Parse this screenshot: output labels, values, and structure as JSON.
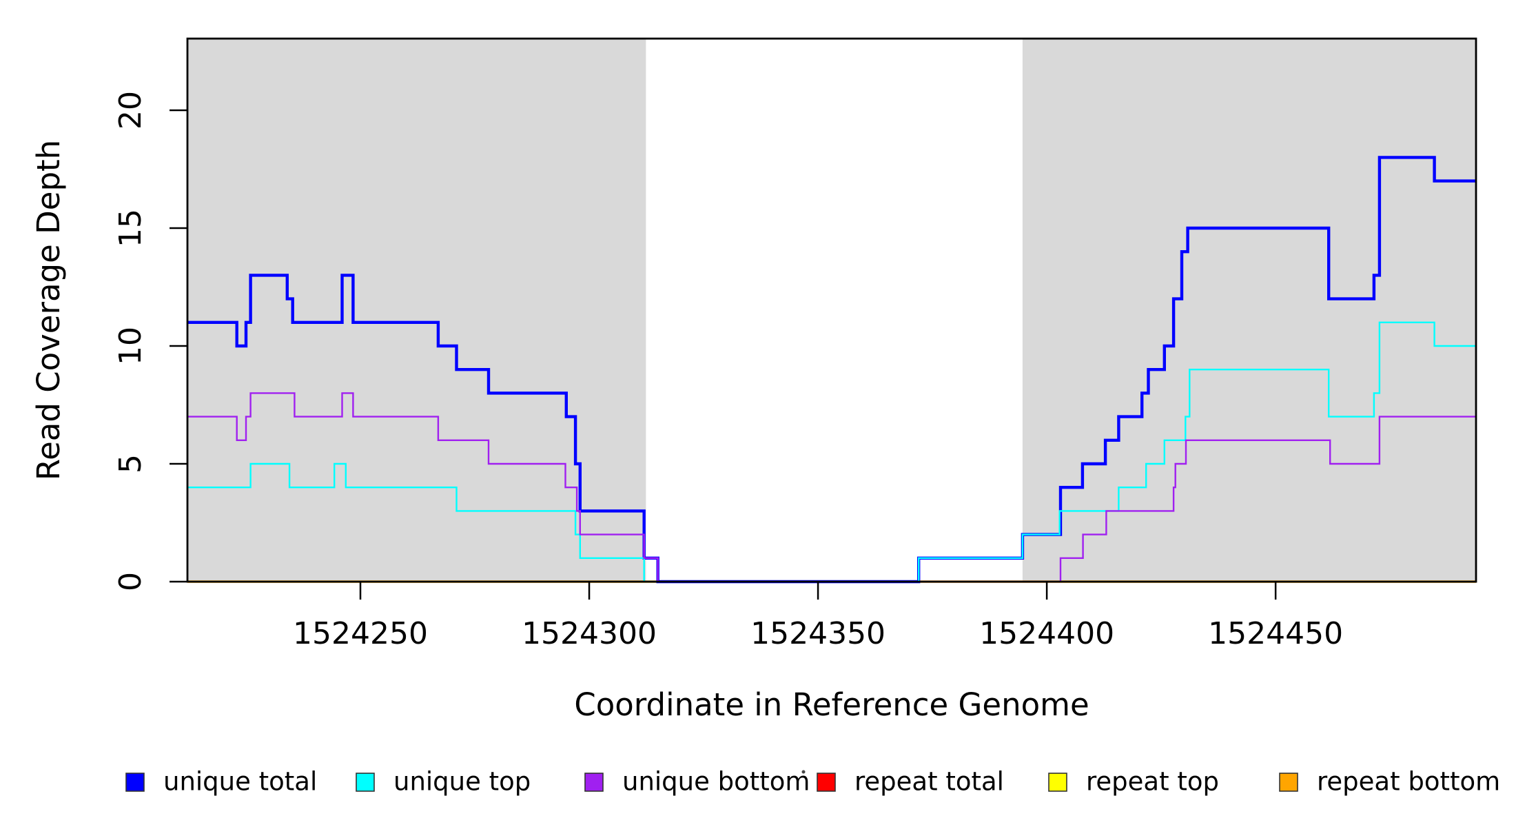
{
  "chart_data": {
    "type": "line",
    "subtype": "step-coverage-plot",
    "title": "",
    "xlabel": "Coordinate in Reference Genome",
    "ylabel": "Read Coverage Depth",
    "xlim": [
      1524212.2,
      1524493.8
    ],
    "ylim": [
      0,
      23.04
    ],
    "grid": false,
    "background_color": "#FFFFFF",
    "box_color": "#000000",
    "shaded_region_color": "#D9D9D9",
    "shaded_regions": [
      [
        1524212.2,
        1524312.4
      ],
      [
        1524394.7,
        1524493.8
      ]
    ],
    "x_ticks": [
      {
        "value": 1524250,
        "label": "1524250"
      },
      {
        "value": 1524300,
        "label": "1524300"
      },
      {
        "value": 1524350,
        "label": "1524350"
      },
      {
        "value": 1524400,
        "label": "1524400"
      },
      {
        "value": 1524450,
        "label": "1524450"
      }
    ],
    "y_ticks": [
      {
        "value": 0,
        "label": "0"
      },
      {
        "value": 5,
        "label": "5"
      },
      {
        "value": 10,
        "label": "10"
      },
      {
        "value": 15,
        "label": "15"
      },
      {
        "value": 20,
        "label": "20"
      }
    ],
    "series": [
      {
        "name": "unique total",
        "color": "#0000FF",
        "line_width": 4.4,
        "start_value": 11,
        "steps": [
          [
            1524223,
            10
          ],
          [
            1524225,
            11
          ],
          [
            1524226,
            13
          ],
          [
            1524234,
            12
          ],
          [
            1524235.2,
            11
          ],
          [
            1524246,
            13
          ],
          [
            1524248.4,
            11
          ],
          [
            1524267,
            10
          ],
          [
            1524271,
            9
          ],
          [
            1524278,
            8
          ],
          [
            1524295,
            7
          ],
          [
            1524297,
            5
          ],
          [
            1524298,
            3
          ],
          [
            1524312,
            1
          ],
          [
            1524315,
            0
          ],
          [
            1524372,
            1
          ],
          [
            1524394.7,
            2
          ],
          [
            1524403,
            4
          ],
          [
            1524407.8,
            5
          ],
          [
            1524412.8,
            6
          ],
          [
            1524415.7,
            7
          ],
          [
            1524420.8,
            8
          ],
          [
            1524422.2,
            9
          ],
          [
            1524425.7,
            10
          ],
          [
            1524427.7,
            12
          ],
          [
            1524429.5,
            14
          ],
          [
            1524430.8,
            15
          ],
          [
            1524461.6,
            12
          ],
          [
            1524471.5,
            13
          ],
          [
            1524472.7,
            18
          ],
          [
            1524484.7,
            17
          ]
        ]
      },
      {
        "name": "unique top",
        "color": "#00FFFF",
        "line_width": 2.4,
        "start_value": 4,
        "steps": [
          [
            1524226,
            5
          ],
          [
            1524234.5,
            4
          ],
          [
            1524244.3,
            5
          ],
          [
            1524246.8,
            4
          ],
          [
            1524271,
            3
          ],
          [
            1524297,
            2
          ],
          [
            1524298,
            1
          ],
          [
            1524312,
            0
          ],
          [
            1524372,
            1
          ],
          [
            1524394.7,
            2
          ],
          [
            1524402.8,
            3
          ],
          [
            1524415.7,
            4
          ],
          [
            1524421.7,
            5
          ],
          [
            1524425.7,
            6
          ],
          [
            1524430.3,
            7
          ],
          [
            1524431.2,
            9
          ],
          [
            1524461.6,
            7
          ],
          [
            1524471.5,
            8
          ],
          [
            1524472.7,
            11
          ],
          [
            1524484.7,
            10
          ]
        ]
      },
      {
        "name": "unique bottom",
        "color": "#A020F0",
        "line_width": 2.4,
        "start_value": 7,
        "steps": [
          [
            1524223,
            6
          ],
          [
            1524225,
            7
          ],
          [
            1524226,
            8
          ],
          [
            1524235.6,
            7
          ],
          [
            1524246,
            8
          ],
          [
            1524248.4,
            7
          ],
          [
            1524267,
            6
          ],
          [
            1524278,
            5
          ],
          [
            1524294.8,
            4
          ],
          [
            1524297.3,
            3
          ],
          [
            1524298,
            2
          ],
          [
            1524312,
            1
          ],
          [
            1524315,
            0
          ],
          [
            1524403,
            1
          ],
          [
            1524407.9,
            2
          ],
          [
            1524413,
            3
          ],
          [
            1524427.7,
            4
          ],
          [
            1524428.1,
            5
          ],
          [
            1524430.4,
            6
          ],
          [
            1524461.9,
            5
          ],
          [
            1524472.7,
            7
          ]
        ]
      },
      {
        "name": "repeat total",
        "color": "#FF0000",
        "line_width": 2.2,
        "start_value": 0,
        "steps": []
      },
      {
        "name": "repeat top",
        "color": "#FFFF00",
        "line_width": 2.2,
        "start_value": 0,
        "steps": []
      },
      {
        "name": "repeat bottom",
        "color": "#FFA500",
        "line_width": 3.4,
        "start_value": 0,
        "steps": []
      }
    ],
    "legend": {
      "position": "bottom",
      "items": [
        {
          "label": "unique total",
          "color": "#0000FF"
        },
        {
          "label": "unique top",
          "color": "#00FFFF"
        },
        {
          "label": "unique bottom",
          "color": "#A020F0"
        },
        {
          "label": "repeat total",
          "color": "#FF0000"
        },
        {
          "label": "repeat top",
          "color": "#FFFF00"
        },
        {
          "label": "repeat bottom",
          "color": "#FFA500"
        }
      ]
    },
    "stray_mark_present": true
  }
}
